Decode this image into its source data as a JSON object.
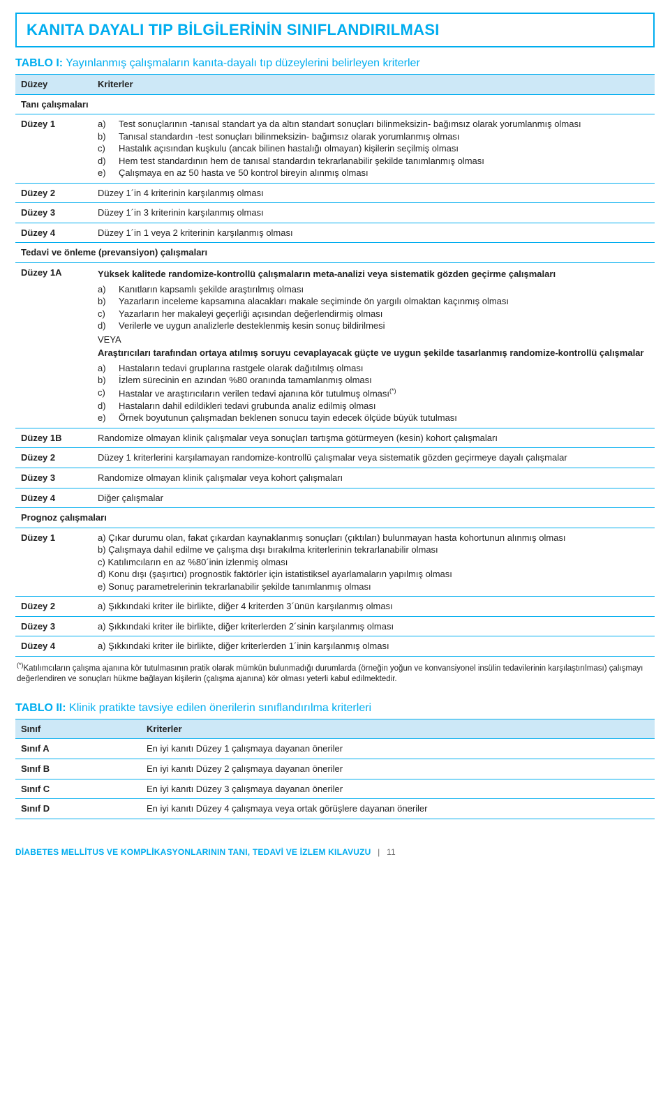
{
  "colors": {
    "accent": "#00adef",
    "header_bg": "#cde8f7",
    "text": "#222222"
  },
  "page_title": "KANITA DAYALI TIP BİLGİLERİNİN SINIFLANDIRILMASI",
  "table1": {
    "caption_label": "TABLO I:",
    "caption_desc": "Yayınlanmış çalışmaların kanıta-dayalı tıp düzeylerini belirleyen kriterler",
    "head_left": "Düzey",
    "head_right": "Kriterler",
    "sections": [
      {
        "title": "Tanı çalışmaları",
        "rows": [
          {
            "level": "Düzey 1",
            "list": [
              {
                "m": "a)",
                "t": "Test sonuçlarının -tanısal standart ya da altın standart sonuçları bilinmeksizin- bağımsız olarak yorumlanmış olması"
              },
              {
                "m": "b)",
                "t": "Tanısal standardın -test sonuçları bilinmeksizin- bağımsız olarak yorumlanmış olması"
              },
              {
                "m": "c)",
                "t": "Hastalık açısından kuşkulu (ancak bilinen hastalığı olmayan) kişilerin seçilmiş olması"
              },
              {
                "m": "d)",
                "t": "Hem test standardının hem de tanısal standardın tekrarlanabilir şekilde tanımlanmış olması"
              },
              {
                "m": "e)",
                "t": "Çalışmaya en az 50 hasta ve 50 kontrol bireyin alınmış olması"
              }
            ]
          },
          {
            "level": "Düzey 2",
            "plain": "Düzey 1´in 4 kriterinin karşılanmış olması"
          },
          {
            "level": "Düzey 3",
            "plain": "Düzey 1´in 3 kriterinin karşılanmış olması"
          },
          {
            "level": "Düzey 4",
            "plain": "Düzey 1´in 1 veya 2 kriterinin karşılanmış olması"
          }
        ]
      },
      {
        "title": "Tedavi ve önleme (prevansiyon) çalışmaları",
        "rows": [
          {
            "level": "Düzey 1A",
            "blocks": [
              {
                "heading": "Yüksek kalitede randomize-kontrollü çalışmaların meta-analizi veya sistematik gözden geçirme çalışmaları",
                "list": [
                  {
                    "m": "a)",
                    "t": "Kanıtların kapsamlı şekilde araştırılmış olması"
                  },
                  {
                    "m": "b)",
                    "t": "Yazarların inceleme kapsamına alacakları makale seçiminde ön yargılı olmaktan kaçınmış olması"
                  },
                  {
                    "m": "c)",
                    "t": "Yazarların her makaleyi geçerliği açısından değerlendirmiş olması"
                  },
                  {
                    "m": "d)",
                    "t": "Verilerle ve uygun analizlerle desteklenmiş kesin sonuç bildirilmesi"
                  }
                ]
              },
              {
                "veya": "VEYA"
              },
              {
                "heading": "Araştırıcıları tarafından ortaya atılmış soruyu cevaplayacak güçte ve uygun şekilde tasarlanmış randomize-kontrollü çalışmalar",
                "list": [
                  {
                    "m": "a)",
                    "t": "Hastaların tedavi gruplarına rastgele olarak dağıtılmış olması"
                  },
                  {
                    "m": "b)",
                    "t": "İzlem sürecinin en azından %80 oranında tamamlanmış olması"
                  },
                  {
                    "m": "c)",
                    "t": "Hastalar ve araştırıcıların verilen tedavi ajanına kör tutulmuş olması",
                    "sup": "(*)"
                  },
                  {
                    "m": "d)",
                    "t": "Hastaların dahil edildikleri tedavi grubunda analiz edilmiş olması"
                  },
                  {
                    "m": "e)",
                    "t": "Örnek boyutunun çalışmadan beklenen sonucu tayin edecek ölçüde büyük tutulması"
                  }
                ]
              }
            ]
          },
          {
            "level": "Düzey 1B",
            "plain": "Randomize olmayan klinik çalışmalar veya sonuçları tartışma götürmeyen (kesin) kohort çalışmaları"
          },
          {
            "level": "Düzey 2",
            "plain": "Düzey 1 kriterlerini karşılamayan randomize-kontrollü çalışmalar veya sistematik gözden geçirmeye dayalı çalışmalar"
          },
          {
            "level": "Düzey 3",
            "plain": "Randomize olmayan klinik çalışmalar veya kohort çalışmaları"
          },
          {
            "level": "Düzey 4",
            "plain": "Diğer çalışmalar"
          }
        ]
      },
      {
        "title": "Prognoz çalışmaları",
        "rows": [
          {
            "level": "Düzey 1",
            "list": [
              {
                "m": "",
                "t": "a) Çıkar durumu olan, fakat çıkardan kaynaklanmış sonuçları (çıktıları) bulunmayan hasta kohortunun alınmış olması"
              },
              {
                "m": "",
                "t": "b) Çalışmaya dahil edilme ve çalışma dışı bırakılma kriterlerinin tekrarlanabilir olması"
              },
              {
                "m": "",
                "t": "c) Katılımcıların en az %80´inin izlenmiş olması"
              },
              {
                "m": "",
                "t": "d) Konu dışı (şaşırtıcı) prognostik faktörler için istatistiksel ayarlamaların yapılmış olması"
              },
              {
                "m": "",
                "t": "e) Sonuç parametrelerinin tekrarlanabilir şekilde tanımlanmış olması"
              }
            ]
          },
          {
            "level": "Düzey 2",
            "plain": "a) Şıkkındaki kriter ile birlikte, diğer 4 kriterden 3´ünün karşılanmış olması"
          },
          {
            "level": "Düzey 3",
            "plain": "a) Şıkkındaki kriter ile birlikte, diğer kriterlerden 2´sinin karşılanmış olması"
          },
          {
            "level": "Düzey 4",
            "plain": "a) Şıkkındaki kriter ile birlikte, diğer kriterlerden 1´inin karşılanmış olması"
          }
        ]
      }
    ],
    "footnote_marker": "(*)",
    "footnote": "Katılımcıların çalışma ajanına kör tutulmasının pratik olarak mümkün bulunmadığı durumlarda (örneğin yoğun ve konvansiyonel insülin tedavilerinin karşılaştırılması) çalışmayı değerlendiren ve sonuçları hükme bağlayan kişilerin (çalışma ajanına) kör olması yeterli kabul edilmektedir."
  },
  "table2": {
    "caption_label": "TABLO II:",
    "caption_desc": "Klinik pratikte tavsiye edilen önerilerin sınıflandırılma kriterleri",
    "head_left": "Sınıf",
    "head_right": "Kriterler",
    "rows": [
      {
        "level": "Sınıf A",
        "plain": "En iyi kanıtı Düzey 1 çalışmaya dayanan öneriler"
      },
      {
        "level": "Sınıf B",
        "plain": "En iyi kanıtı Düzey 2 çalışmaya dayanan öneriler"
      },
      {
        "level": "Sınıf C",
        "plain": "En iyi kanıtı Düzey 3 çalışmaya dayanan öneriler"
      },
      {
        "level": "Sınıf D",
        "plain": "En iyi kanıtı Düzey 4 çalışmaya veya ortak görüşlere dayanan öneriler"
      }
    ]
  },
  "footer_text": "DİABETES MELLİTUS VE KOMPLİKASYONLARININ TANI, TEDAVİ VE İZLEM KILAVUZU",
  "footer_sep": "|",
  "footer_page": "11"
}
